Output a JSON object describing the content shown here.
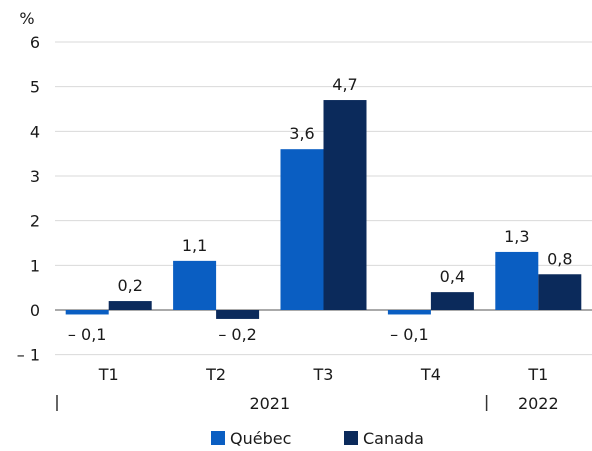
{
  "chart_data": {
    "type": "bar",
    "unit_label": "%",
    "categories": [
      "T1",
      "T2",
      "T3",
      "T4",
      "T1"
    ],
    "year_groups": [
      {
        "label": "2021",
        "categories": [
          "T1",
          "T2",
          "T3",
          "T4"
        ]
      },
      {
        "label": "2022",
        "categories": [
          "T1"
        ]
      }
    ],
    "series": [
      {
        "name": "Québec",
        "values": [
          -0.1,
          1.1,
          3.6,
          -0.1,
          1.3
        ],
        "labels": [
          "– 0,1",
          "1,1",
          "3,6",
          "– 0,1",
          "1,3"
        ],
        "color": "#0a5ec2"
      },
      {
        "name": "Canada",
        "values": [
          0.2,
          -0.2,
          4.7,
          0.4,
          0.8
        ],
        "labels": [
          "0,2",
          "– 0,2",
          "4,7",
          "0,4",
          "0,8"
        ],
        "color": "#0b2a5b"
      }
    ],
    "ylim": [
      -1,
      6
    ],
    "yticks": [
      -1,
      0,
      1,
      2,
      3,
      4,
      5,
      6
    ],
    "ytick_labels": [
      "– 1",
      "0",
      "1",
      "2",
      "3",
      "4",
      "5",
      "6"
    ],
    "grid": true,
    "legend_position": "bottom-center"
  }
}
